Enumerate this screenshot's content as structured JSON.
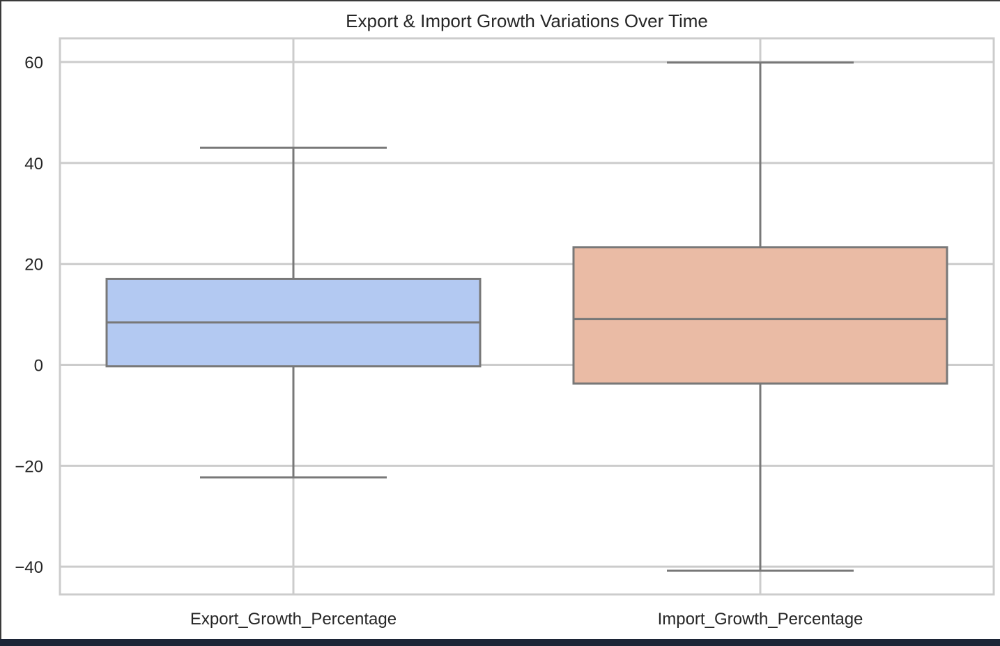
{
  "chart_data": {
    "type": "box",
    "title": "Export & Import Growth Variations Over Time",
    "xlabel": "",
    "ylabel": "",
    "categories": [
      "Export_Growth_Percentage",
      "Import_Growth_Percentage"
    ],
    "boxes": [
      {
        "category": "Export_Growth_Percentage",
        "whisker_low": -22.3,
        "q1": -0.3,
        "median": 8.4,
        "q3": 17.0,
        "whisker_high": 43.0,
        "color": "#b3c9f2"
      },
      {
        "category": "Import_Growth_Percentage",
        "whisker_low": -40.8,
        "q1": -3.7,
        "median": 9.1,
        "q3": 23.3,
        "whisker_high": 59.9,
        "color": "#eabba5"
      }
    ],
    "ylim": [
      -45.5,
      64.7
    ],
    "yticks": [
      60,
      40,
      20,
      0,
      -20,
      -40
    ],
    "ytick_labels": [
      "60",
      "40",
      "20",
      "0",
      "−20",
      "−40"
    ],
    "grid": true,
    "line_color": "#787878",
    "grid_color": "#cccccc",
    "legend": "none"
  }
}
